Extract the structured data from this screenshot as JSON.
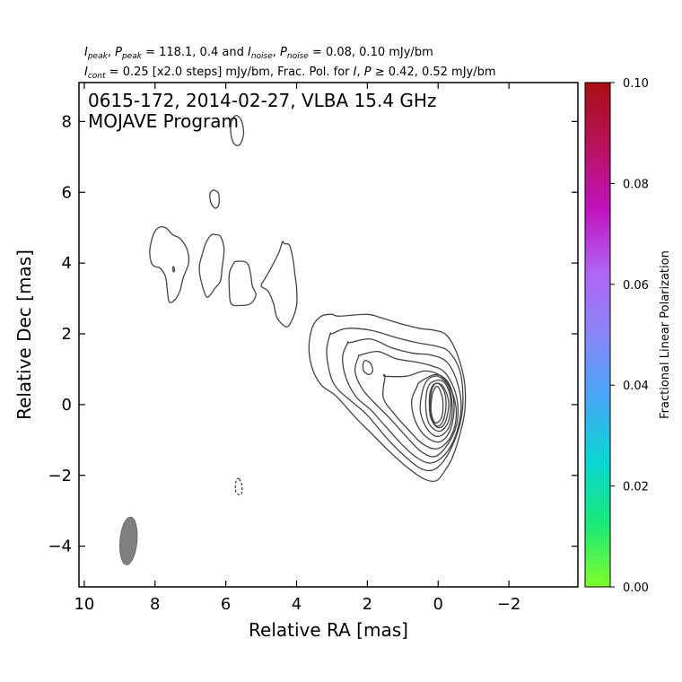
{
  "header": {
    "line1": {
      "i_peak_label": "I",
      "i_peak_sub": "peak",
      "p_peak_label": "P",
      "p_peak_sub": "peak",
      "peak_values": " = 118.1, 0.4 and ",
      "i_noise_label": "I",
      "i_noise_sub": "noise",
      "p_noise_label": "P",
      "p_noise_sub": "noise",
      "noise_values": " = 0.08, 0.10 mJy/bm"
    },
    "line2": {
      "i_cont_label": "I",
      "i_cont_sub": "cont",
      "cont_text": " = 0.25 [x2.0 steps] mJy/bm, Frac. Pol. for ",
      "i_label": "I",
      "p_label": "P",
      "tail": " ≥ 0.42, 0.52 mJy/bm"
    }
  },
  "chart_data": {
    "type": "contour",
    "annotation": [
      "0615-172, 2014-02-27, VLBA 15.4 GHz",
      "MOJAVE Program"
    ],
    "xlabel": "Relative RA [mas]",
    "ylabel": "Relative Dec [mas]",
    "xlim": [
      10.15,
      -3.95
    ],
    "ylim": [
      -5.15,
      9.1
    ],
    "x_ticks": [
      10,
      8,
      6,
      4,
      2,
      0,
      -2
    ],
    "x_tick_labels": [
      "10",
      "8",
      "6",
      "4",
      "2",
      "0",
      "−2"
    ],
    "y_ticks": [
      -4,
      -2,
      0,
      2,
      4,
      6,
      8
    ],
    "y_tick_labels": [
      "−4",
      "−2",
      "0",
      "2",
      "4",
      "6",
      "8"
    ],
    "contour_base_mJy_per_beam": 0.25,
    "contour_step_factor": 2.0,
    "peak_mJy_per_beam": 118.1,
    "beam": {
      "center": [
        8.75,
        -3.85
      ],
      "major_mas": 1.35,
      "minor_mas": 0.48,
      "pa_deg": -5
    },
    "colorbar": {
      "label": "Fractional Linear Polarization",
      "range": [
        0.0,
        0.1
      ],
      "ticks": [
        0.0,
        0.02,
        0.04,
        0.06,
        0.08,
        0.1
      ],
      "tick_labels": [
        "0.00",
        "0.02",
        "0.04",
        "0.06",
        "0.08",
        "0.10"
      ],
      "color_stops": [
        "#7fff2a",
        "#19e878",
        "#0ad6d4",
        "#47a6f5",
        "#8a86f7",
        "#b064f0",
        "#c012bd",
        "#b8125c",
        "#a80f12"
      ]
    },
    "contours": [
      {
        "level": 1,
        "dashed": false,
        "points": [
          [
            2.8,
            2.5
          ],
          [
            2.0,
            2.55
          ],
          [
            1.6,
            2.45
          ],
          [
            1.1,
            2.3
          ],
          [
            0.5,
            2.15
          ],
          [
            0.1,
            2.1
          ],
          [
            -0.25,
            1.95
          ],
          [
            -0.55,
            1.4
          ],
          [
            -0.75,
            0.6
          ],
          [
            -0.75,
            -0.2
          ],
          [
            -0.6,
            -0.9
          ],
          [
            -0.4,
            -1.5
          ],
          [
            -0.2,
            -1.85
          ],
          [
            0.05,
            -2.15
          ],
          [
            0.4,
            -2.1
          ],
          [
            0.9,
            -1.75
          ],
          [
            1.4,
            -1.3
          ],
          [
            1.9,
            -0.8
          ],
          [
            2.3,
            -0.4
          ],
          [
            2.75,
            0.1
          ],
          [
            2.95,
            0.3
          ],
          [
            3.3,
            0.55
          ],
          [
            3.55,
            1.0
          ],
          [
            3.65,
            1.6
          ],
          [
            3.55,
            2.2
          ],
          [
            3.3,
            2.5
          ],
          [
            3.0,
            2.55
          ]
        ]
      },
      {
        "level": 2,
        "dashed": false,
        "points": [
          [
            3.0,
            2.0
          ],
          [
            2.6,
            2.15
          ],
          [
            1.9,
            2.1
          ],
          [
            1.2,
            1.9
          ],
          [
            0.6,
            1.75
          ],
          [
            0.05,
            1.65
          ],
          [
            -0.3,
            1.5
          ],
          [
            -0.6,
            1.0
          ],
          [
            -0.7,
            0.3
          ],
          [
            -0.65,
            -0.4
          ],
          [
            -0.45,
            -1.05
          ],
          [
            -0.15,
            -1.6
          ],
          [
            0.15,
            -1.85
          ],
          [
            0.5,
            -1.8
          ],
          [
            0.95,
            -1.45
          ],
          [
            1.45,
            -0.95
          ],
          [
            2.0,
            -0.3
          ],
          [
            2.4,
            0.05
          ],
          [
            2.85,
            0.45
          ],
          [
            3.05,
            0.85
          ],
          [
            3.15,
            1.5
          ],
          [
            3.05,
            2.0
          ]
        ]
      },
      {
        "level": 3,
        "dashed": false,
        "points": [
          [
            2.5,
            1.75
          ],
          [
            1.9,
            1.85
          ],
          [
            1.3,
            1.6
          ],
          [
            0.7,
            1.45
          ],
          [
            0.2,
            1.4
          ],
          [
            -0.25,
            1.2
          ],
          [
            -0.55,
            0.6
          ],
          [
            -0.65,
            -0.1
          ],
          [
            -0.5,
            -0.85
          ],
          [
            -0.2,
            -1.4
          ],
          [
            0.2,
            -1.65
          ],
          [
            0.6,
            -1.5
          ],
          [
            1.0,
            -1.15
          ],
          [
            1.5,
            -0.6
          ],
          [
            1.9,
            -0.15
          ],
          [
            2.3,
            0.2
          ],
          [
            2.6,
            0.75
          ],
          [
            2.7,
            1.35
          ],
          [
            2.55,
            1.75
          ]
        ]
      },
      {
        "level": 4,
        "dashed": false,
        "points": [
          [
            2.2,
            1.4
          ],
          [
            1.7,
            1.5
          ],
          [
            1.2,
            1.3
          ],
          [
            0.6,
            1.2
          ],
          [
            0.2,
            1.1
          ],
          [
            -0.2,
            0.9
          ],
          [
            -0.5,
            0.3
          ],
          [
            -0.55,
            -0.4
          ],
          [
            -0.35,
            -1.0
          ],
          [
            0.05,
            -1.45
          ],
          [
            0.45,
            -1.35
          ],
          [
            0.9,
            -0.9
          ],
          [
            1.4,
            -0.35
          ],
          [
            1.8,
            0.05
          ],
          [
            2.15,
            0.45
          ],
          [
            2.35,
            0.95
          ],
          [
            2.25,
            1.35
          ]
        ]
      },
      {
        "level": 5,
        "dashed": false,
        "points": [
          [
            1.5,
            0.8
          ],
          [
            0.9,
            0.8
          ],
          [
            0.35,
            0.95
          ],
          [
            -0.15,
            0.75
          ],
          [
            -0.45,
            0.2
          ],
          [
            -0.5,
            -0.45
          ],
          [
            -0.3,
            -1.0
          ],
          [
            0.05,
            -1.25
          ],
          [
            0.45,
            -1.1
          ],
          [
            0.85,
            -0.7
          ],
          [
            1.25,
            -0.25
          ],
          [
            1.55,
            0.2
          ],
          [
            1.5,
            0.8
          ]
        ]
      },
      {
        "level": 6,
        "dashed": false,
        "points": [
          [
            0.5,
            0.65
          ],
          [
            0.05,
            0.85
          ],
          [
            -0.3,
            0.6
          ],
          [
            -0.45,
            0.0
          ],
          [
            -0.35,
            -0.7
          ],
          [
            -0.05,
            -1.05
          ],
          [
            0.35,
            -0.9
          ],
          [
            0.65,
            -0.45
          ],
          [
            0.75,
            0.1
          ],
          [
            0.6,
            0.5
          ]
        ]
      },
      {
        "level": 7,
        "dashed": false,
        "points": [
          [
            0.3,
            0.7
          ],
          [
            0.0,
            0.8
          ],
          [
            -0.3,
            0.5
          ],
          [
            -0.4,
            -0.1
          ],
          [
            -0.3,
            -0.65
          ],
          [
            0.0,
            -0.9
          ],
          [
            0.3,
            -0.7
          ],
          [
            0.5,
            -0.2
          ],
          [
            0.45,
            0.35
          ]
        ]
      },
      {
        "level": 8,
        "dashed": false,
        "points": [
          [
            0.15,
            0.65
          ],
          [
            -0.15,
            0.65
          ],
          [
            -0.35,
            0.2
          ],
          [
            -0.3,
            -0.45
          ],
          [
            -0.05,
            -0.75
          ],
          [
            0.25,
            -0.55
          ],
          [
            0.35,
            -0.05
          ],
          [
            0.3,
            0.45
          ]
        ]
      },
      {
        "level": 9,
        "dashed": false,
        "points": [
          [
            0.05,
            0.6
          ],
          [
            -0.15,
            0.5
          ],
          [
            -0.3,
            0.05
          ],
          [
            -0.2,
            -0.5
          ],
          [
            0.0,
            -0.65
          ],
          [
            0.2,
            -0.4
          ],
          [
            0.25,
            0.05
          ],
          [
            0.2,
            0.45
          ]
        ]
      },
      {
        "level": 10,
        "dashed": false,
        "points": [
          [
            0.0,
            0.6
          ],
          [
            -0.18,
            0.35
          ],
          [
            -0.22,
            -0.1
          ],
          [
            -0.12,
            -0.5
          ],
          [
            0.05,
            -0.6
          ],
          [
            0.2,
            -0.3
          ],
          [
            0.22,
            0.15
          ],
          [
            0.15,
            0.5
          ]
        ]
      },
      {
        "level": 11,
        "dashed": false,
        "points": [
          [
            0.0,
            0.5
          ],
          [
            -0.12,
            0.2
          ],
          [
            -0.13,
            -0.2
          ],
          [
            -0.05,
            -0.45
          ],
          [
            0.1,
            -0.5
          ],
          [
            0.2,
            -0.2
          ],
          [
            0.18,
            0.2
          ],
          [
            0.1,
            0.45
          ]
        ]
      },
      {
        "level": 1,
        "dashed": false,
        "points": [
          [
            2.05,
            1.25
          ],
          [
            1.9,
            1.15
          ],
          [
            1.85,
            0.95
          ],
          [
            1.95,
            0.85
          ],
          [
            2.1,
            0.95
          ],
          [
            2.12,
            1.15
          ]
        ]
      },
      {
        "level": 1,
        "dashed": false,
        "points": [
          [
            7.7,
            5.0
          ],
          [
            7.5,
            4.8
          ],
          [
            7.3,
            4.7
          ],
          [
            7.1,
            4.4
          ],
          [
            7.05,
            4.0
          ],
          [
            7.2,
            3.6
          ],
          [
            7.3,
            3.2
          ],
          [
            7.45,
            2.95
          ],
          [
            7.6,
            2.9
          ],
          [
            7.65,
            3.2
          ],
          [
            7.7,
            3.6
          ],
          [
            7.85,
            3.85
          ],
          [
            8.0,
            3.9
          ],
          [
            8.1,
            4.0
          ],
          [
            8.15,
            4.35
          ],
          [
            8.05,
            4.8
          ],
          [
            7.9,
            5.0
          ]
        ]
      },
      {
        "level": 1,
        "dashed": false,
        "points": [
          [
            7.48,
            3.9
          ],
          [
            7.45,
            3.8
          ],
          [
            7.48,
            3.75
          ],
          [
            7.5,
            3.85
          ]
        ]
      },
      {
        "level": 1,
        "dashed": false,
        "points": [
          [
            6.3,
            4.8
          ],
          [
            6.15,
            4.75
          ],
          [
            6.05,
            4.4
          ],
          [
            6.1,
            3.9
          ],
          [
            6.15,
            3.5
          ],
          [
            6.3,
            3.3
          ],
          [
            6.4,
            3.15
          ],
          [
            6.55,
            3.05
          ],
          [
            6.7,
            3.5
          ],
          [
            6.75,
            3.9
          ],
          [
            6.65,
            4.3
          ],
          [
            6.55,
            4.6
          ],
          [
            6.4,
            4.8
          ]
        ]
      },
      {
        "level": 1,
        "dashed": false,
        "points": [
          [
            5.7,
            4.05
          ],
          [
            5.4,
            4.0
          ],
          [
            5.3,
            3.7
          ],
          [
            5.25,
            3.35
          ],
          [
            5.15,
            3.1
          ],
          [
            5.3,
            2.85
          ],
          [
            5.6,
            2.8
          ],
          [
            5.85,
            2.85
          ],
          [
            5.9,
            3.2
          ],
          [
            5.9,
            3.7
          ],
          [
            5.8,
            3.95
          ]
        ]
      },
      {
        "level": 1,
        "dashed": false,
        "points": [
          [
            4.35,
            4.55
          ],
          [
            4.2,
            4.5
          ],
          [
            4.1,
            4.1
          ],
          [
            4.05,
            3.7
          ],
          [
            4.0,
            3.3
          ],
          [
            4.0,
            2.8
          ],
          [
            4.15,
            2.35
          ],
          [
            4.3,
            2.2
          ],
          [
            4.55,
            2.45
          ],
          [
            4.65,
            2.85
          ],
          [
            4.8,
            3.2
          ],
          [
            5.0,
            3.35
          ],
          [
            4.9,
            3.55
          ],
          [
            4.7,
            3.9
          ],
          [
            4.5,
            4.3
          ],
          [
            4.4,
            4.6
          ]
        ]
      },
      {
        "level": 1,
        "dashed": false,
        "points": [
          [
            6.3,
            6.05
          ],
          [
            6.2,
            5.95
          ],
          [
            6.2,
            5.65
          ],
          [
            6.3,
            5.55
          ],
          [
            6.42,
            5.7
          ],
          [
            6.45,
            5.95
          ],
          [
            6.38,
            6.05
          ]
        ]
      },
      {
        "level": 1,
        "dashed": false,
        "points": [
          [
            5.65,
            8.15
          ],
          [
            5.55,
            8.0
          ],
          [
            5.5,
            7.65
          ],
          [
            5.6,
            7.35
          ],
          [
            5.75,
            7.35
          ],
          [
            5.85,
            7.6
          ],
          [
            5.85,
            7.95
          ],
          [
            5.75,
            8.15
          ]
        ]
      },
      {
        "level": -1,
        "dashed": true,
        "points": [
          [
            5.62,
            -2.1
          ],
          [
            5.55,
            -2.25
          ],
          [
            5.55,
            -2.5
          ],
          [
            5.62,
            -2.55
          ],
          [
            5.72,
            -2.45
          ],
          [
            5.72,
            -2.2
          ],
          [
            5.68,
            -2.1
          ]
        ]
      }
    ]
  }
}
